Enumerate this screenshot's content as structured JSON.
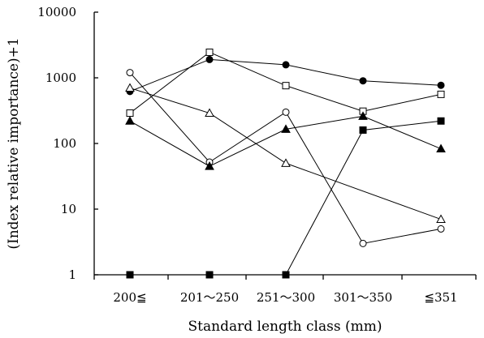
{
  "chart_data": {
    "type": "line",
    "title": "",
    "xlabel": "Standard length class (mm)",
    "ylabel": "(Index relative importance)+1",
    "yscale": "log",
    "ylim": [
      1,
      10000
    ],
    "yticks": [
      1,
      10,
      100,
      1000,
      10000
    ],
    "ytick_labels": [
      "1",
      "10",
      "100",
      "1000",
      "10000"
    ],
    "categories": [
      "200≦",
      "201〜250",
      "251〜300",
      "301〜350",
      "≦351"
    ],
    "grid": false,
    "legend": "none",
    "series": [
      {
        "marker": "filled-circle",
        "values": [
          620,
          1900,
          1580,
          900,
          770
        ]
      },
      {
        "marker": "open-square",
        "values": [
          290,
          2450,
          760,
          310,
          560
        ]
      },
      {
        "marker": "open-circle",
        "values": [
          1200,
          52,
          300,
          3,
          5
        ]
      },
      {
        "marker": "open-triangle",
        "values": [
          700,
          290,
          50,
          null,
          7
        ]
      },
      {
        "marker": "filled-triangle",
        "values": [
          220,
          45,
          165,
          260,
          83
        ]
      },
      {
        "marker": "filled-square",
        "values": [
          1,
          1,
          1,
          160,
          220
        ]
      }
    ]
  }
}
